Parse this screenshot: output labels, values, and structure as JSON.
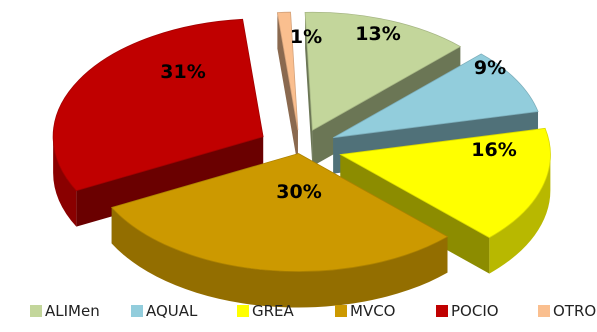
{
  "chart_data": {
    "type": "pie",
    "style": "3d-exploded",
    "categories": [
      "ALIMen",
      "AQUAL",
      "GREA",
      "MVCO",
      "POCIO",
      "OTROS"
    ],
    "values": [
      13,
      9,
      16,
      30,
      31,
      1
    ],
    "data_labels": [
      "13%",
      "9%",
      "16%",
      "30%",
      "31%",
      "1%"
    ],
    "colors": {
      "ALIMen": "#c3d69b",
      "AQUAL": "#92cddc",
      "GREA": "#ffff00",
      "MVCO": "#cc9900",
      "POCIO": "#c00000",
      "OTROS": "#fabf8f"
    },
    "legend_position": "bottom",
    "title": ""
  }
}
